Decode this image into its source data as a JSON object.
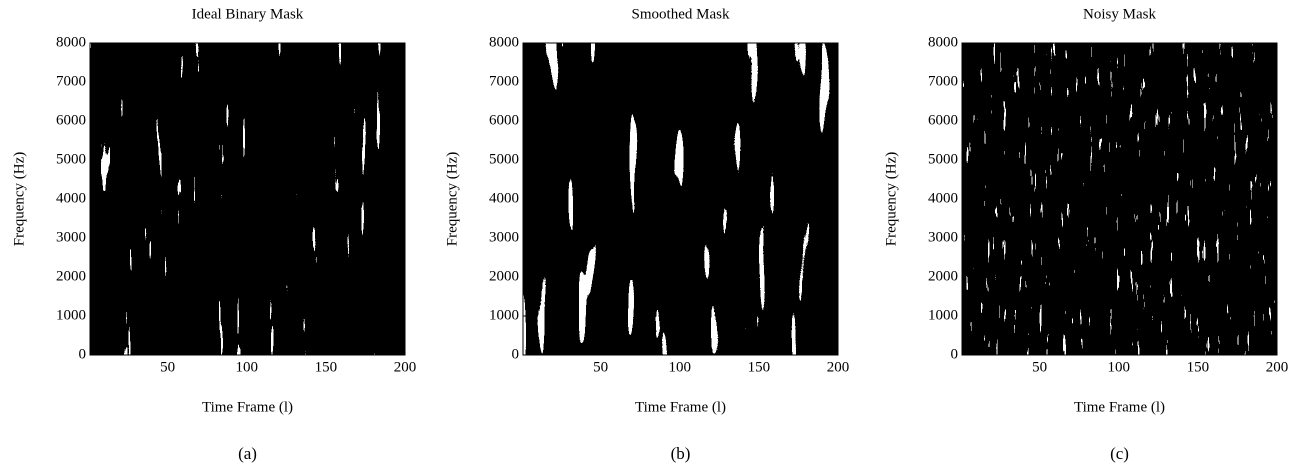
{
  "chart_data": [
    {
      "type": "heatmap",
      "title": "Ideal Binary Mask",
      "xlabel": "Time Frame (l)",
      "ylabel": "Frequency (Hz)",
      "caption": "(a)",
      "xlim": [
        1,
        200
      ],
      "xticks": [
        50,
        100,
        150,
        200
      ],
      "ylim": [
        0,
        8000
      ],
      "yticks": [
        0,
        1000,
        2000,
        3000,
        4000,
        5000,
        6000,
        7000,
        8000
      ]
    },
    {
      "type": "heatmap",
      "title": "Smoothed Mask",
      "xlabel": "Time Frame (l)",
      "ylabel": "Frequency (Hz)",
      "caption": "(b)",
      "xlim": [
        1,
        200
      ],
      "xticks": [
        50,
        100,
        150,
        200
      ],
      "ylim": [
        0,
        8000
      ],
      "yticks": [
        0,
        1000,
        2000,
        3000,
        4000,
        5000,
        6000,
        7000,
        8000
      ]
    },
    {
      "type": "heatmap",
      "title": "Noisy Mask",
      "xlabel": "Time Frame (l)",
      "ylabel": "Frequency (Hz)",
      "caption": "(c)",
      "xlim": [
        1,
        200
      ],
      "xticks": [
        50,
        100,
        150,
        200
      ],
      "ylim": [
        0,
        8000
      ],
      "yticks": [
        0,
        1000,
        2000,
        3000,
        4000,
        5000,
        6000,
        7000,
        8000
      ]
    }
  ]
}
